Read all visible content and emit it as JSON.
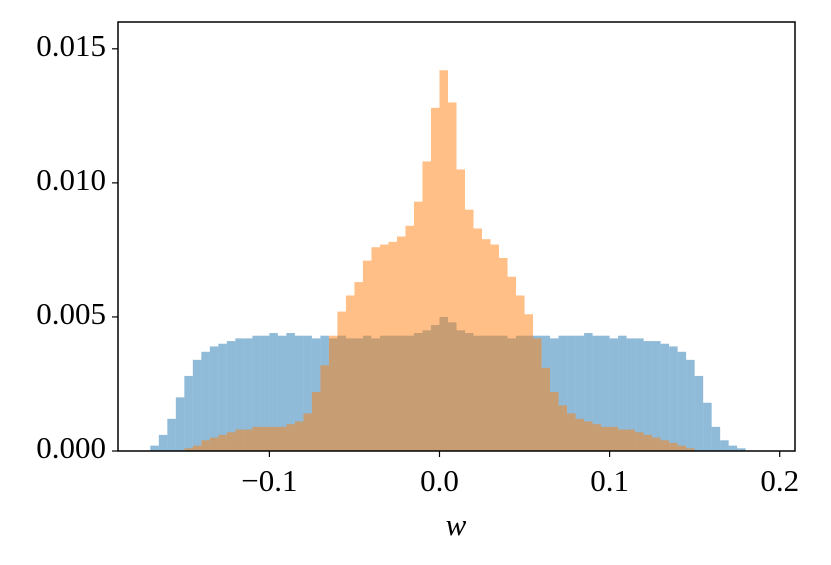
{
  "chart_data": {
    "type": "histogram",
    "x_label": "w",
    "bins": [
      -0.17,
      -0.165,
      -0.16,
      -0.155,
      -0.15,
      -0.145,
      -0.14,
      -0.135,
      -0.13,
      -0.125,
      -0.12,
      -0.115,
      -0.11,
      -0.105,
      -0.1,
      -0.095,
      -0.09,
      -0.085,
      -0.08,
      -0.075,
      -0.07,
      -0.065,
      -0.06,
      -0.055,
      -0.05,
      -0.045,
      -0.04,
      -0.035,
      -0.03,
      -0.025,
      -0.02,
      -0.015,
      -0.01,
      -0.005,
      0,
      0.005,
      0.01,
      0.015,
      0.02,
      0.025,
      0.03,
      0.035,
      0.04,
      0.045,
      0.05,
      0.055,
      0.06,
      0.065,
      0.07,
      0.075,
      0.08,
      0.085,
      0.09,
      0.095,
      0.1,
      0.105,
      0.11,
      0.115,
      0.12,
      0.125,
      0.13,
      0.135,
      0.14,
      0.145,
      0.15,
      0.155,
      0.16,
      0.165,
      0.17,
      0.175,
      0.18
    ],
    "series": [
      {
        "color": "#1f77b4",
        "values": [
          0.0002,
          0.0006,
          0.0012,
          0.002,
          0.0028,
          0.0034,
          0.0037,
          0.0039,
          0.004,
          0.0041,
          0.0042,
          0.0042,
          0.0043,
          0.0043,
          0.0044,
          0.0043,
          0.0044,
          0.0043,
          0.0043,
          0.0042,
          0.0043,
          0.0042,
          0.0043,
          0.0042,
          0.0042,
          0.0043,
          0.0042,
          0.0043,
          0.0043,
          0.0043,
          0.0043,
          0.0044,
          0.0045,
          0.0047,
          0.005,
          0.0048,
          0.0045,
          0.0044,
          0.0043,
          0.0043,
          0.0043,
          0.0043,
          0.0042,
          0.0043,
          0.0043,
          0.0043,
          0.0043,
          0.0042,
          0.0043,
          0.0043,
          0.0043,
          0.0044,
          0.0043,
          0.0043,
          0.0042,
          0.0043,
          0.0042,
          0.0042,
          0.0041,
          0.0041,
          0.004,
          0.0039,
          0.0037,
          0.0034,
          0.0028,
          0.0018,
          0.0009,
          0.0004,
          0.0002,
          0.0001
        ]
      },
      {
        "color": "#ff7f0e",
        "values": [
          0,
          0,
          0,
          0,
          0.0001,
          0.0002,
          0.0004,
          0.0005,
          0.0006,
          0.0007,
          0.0008,
          0.0008,
          0.0009,
          0.0009,
          0.0009,
          0.0009,
          0.001,
          0.0011,
          0.0014,
          0.0022,
          0.0032,
          0.0043,
          0.0052,
          0.0058,
          0.0063,
          0.0071,
          0.0076,
          0.0077,
          0.0078,
          0.008,
          0.0084,
          0.0093,
          0.0108,
          0.0128,
          0.0142,
          0.013,
          0.0105,
          0.009,
          0.0083,
          0.0079,
          0.0077,
          0.0072,
          0.0065,
          0.0058,
          0.0051,
          0.0042,
          0.0031,
          0.0022,
          0.0017,
          0.0014,
          0.0012,
          0.0011,
          0.001,
          0.0009,
          0.0009,
          0.0008,
          0.0008,
          0.0007,
          0.0006,
          0.0005,
          0.0004,
          0.0003,
          0.0002,
          0.0001,
          0,
          0,
          0,
          0,
          0,
          0
        ]
      }
    ],
    "xlim": [
      -0.189,
      0.209
    ],
    "ylim": [
      0,
      0.016
    ],
    "xticks": [
      {
        "value": -0.1,
        "label": "−0.1"
      },
      {
        "value": 0,
        "label": "0.0"
      },
      0.1,
      0.2
    ],
    "yticks": [
      {
        "value": 0,
        "label": "0.000"
      },
      {
        "value": 0.005,
        "label": "0.005"
      },
      {
        "value": 0.01,
        "label": "0.010"
      },
      {
        "value": 0.015,
        "label": "0.015"
      }
    ],
    "opacity": 0.5
  }
}
